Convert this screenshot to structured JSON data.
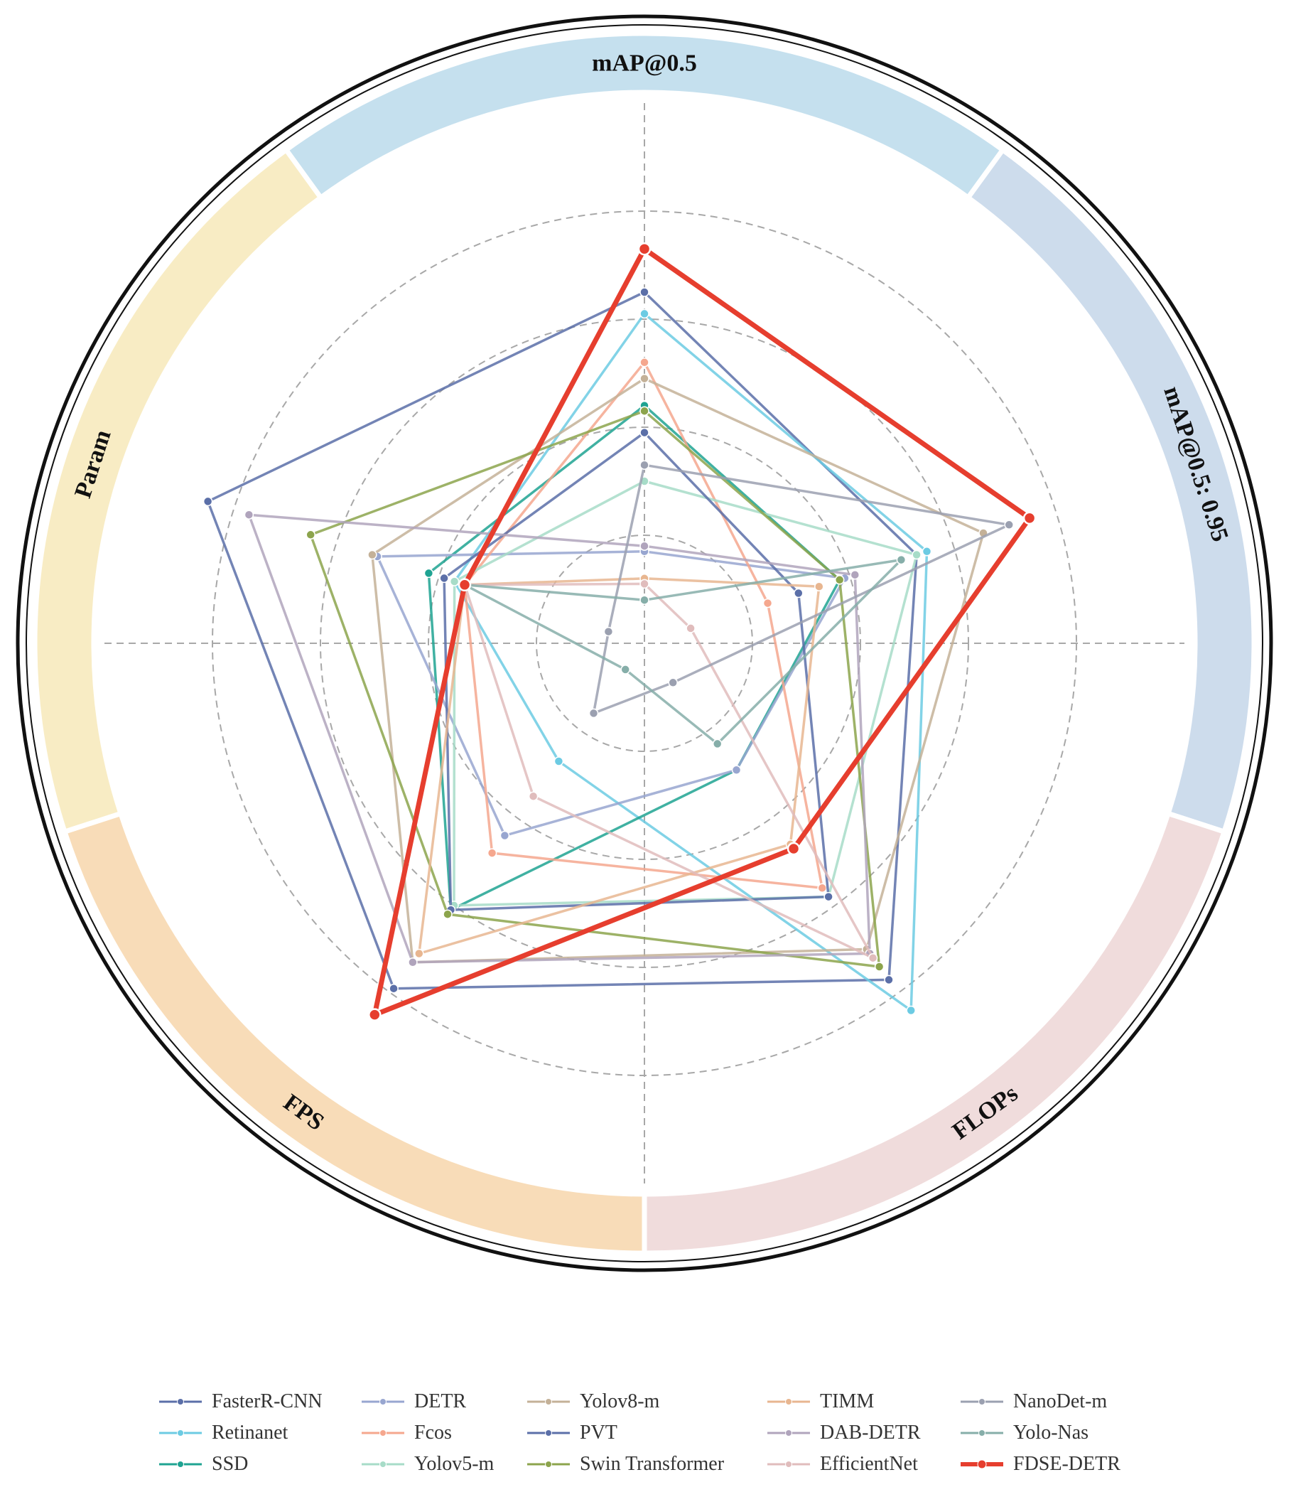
{
  "chart_data": {
    "type": "radar",
    "axes": [
      "mAP@0.5",
      "mAP@0.5: 0.95",
      "FLOPs",
      "FPS",
      "Param"
    ],
    "sectors": [
      {
        "axis": "mAP@0.5",
        "color": "#c5e0ee"
      },
      {
        "axis": "mAP@0.5: 0.95",
        "color": "#cddcec"
      },
      {
        "axis": "FLOPs",
        "color": "#f0dcdc"
      },
      {
        "axis": "FPS",
        "color": "#f8dcb8"
      },
      {
        "axis": "Param",
        "color": "#f8ecc4"
      }
    ],
    "rlim": [
      0,
      10
    ],
    "grid_rings": [
      2,
      4,
      6,
      8
    ],
    "grid": true,
    "legend_position": "bottom",
    "series": [
      {
        "name": "FasterR-CNN",
        "color": "#5b6fa8",
        "values": [
          6.5,
          5.3,
          7.7,
          7.9,
          8.5
        ]
      },
      {
        "name": "Retinanet",
        "color": "#6ccbe3",
        "values": [
          6.1,
          5.5,
          8.4,
          2.7,
          3.7
        ]
      },
      {
        "name": "SSD",
        "color": "#1fa392",
        "values": [
          4.4,
          3.8,
          2.9,
          6.1,
          4.2
        ]
      },
      {
        "name": "DETR",
        "color": "#98a6d0",
        "values": [
          1.7,
          3.9,
          2.9,
          4.4,
          5.2
        ]
      },
      {
        "name": "Fcos",
        "color": "#f5a78e",
        "values": [
          5.2,
          2.4,
          5.6,
          4.8,
          3.5
        ]
      },
      {
        "name": "Yolov5-m",
        "color": "#a7dcc8",
        "values": [
          3.0,
          5.3,
          5.8,
          6.0,
          3.7
        ]
      },
      {
        "name": "Yolov8-m",
        "color": "#c4b198",
        "values": [
          4.9,
          6.6,
          7.0,
          7.3,
          5.3
        ]
      },
      {
        "name": "PVT",
        "color": "#5b6fa8",
        "values": [
          3.9,
          3.0,
          5.8,
          6.1,
          3.9
        ]
      },
      {
        "name": "Swin Transformer",
        "color": "#8ca44c",
        "values": [
          4.3,
          3.8,
          7.4,
          6.2,
          6.5
        ]
      },
      {
        "name": "TIMM",
        "color": "#e8b690",
        "values": [
          1.2,
          3.4,
          4.6,
          7.1,
          3.5
        ]
      },
      {
        "name": "DAB-DETR",
        "color": "#b0a4bc",
        "values": [
          1.8,
          4.1,
          7.1,
          7.3,
          7.7
        ]
      },
      {
        "name": "EfficientNet",
        "color": "#e0bcbc",
        "values": [
          1.1,
          0.9,
          7.2,
          3.5,
          3.5
        ]
      },
      {
        "name": "NanoDet-m",
        "color": "#9ba0b0",
        "values": [
          3.3,
          7.1,
          0.9,
          1.6,
          0.7
        ]
      },
      {
        "name": "Yolo-Nas",
        "color": "#86aea9",
        "values": [
          0.8,
          5.0,
          2.3,
          0.6,
          3.5
        ]
      },
      {
        "name": "FDSE-DETR",
        "color": "#e63e2e",
        "values": [
          7.3,
          7.5,
          4.7,
          8.5,
          3.5
        ]
      }
    ]
  }
}
